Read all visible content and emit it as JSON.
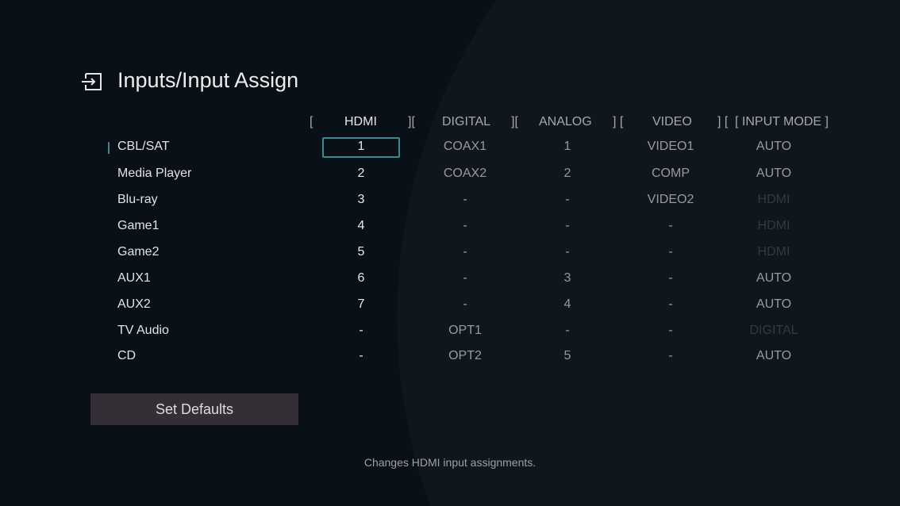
{
  "header": {
    "title": "Inputs/Input Assign",
    "icon": "input-icon"
  },
  "columns": {
    "hdmi": "HDMI",
    "digital": "DIGITAL",
    "analog": "ANALOG",
    "video": "VIDEO",
    "mode": "[ INPUT MODE ]"
  },
  "brackets": {
    "open": "[",
    "sep": "][",
    "sep2": "] [",
    "last": "] ["
  },
  "rows": [
    {
      "name": "CBL/SAT",
      "hdmi": "1",
      "digital": "COAX1",
      "analog": "1",
      "video": "VIDEO1",
      "mode": "AUTO",
      "mode_disabled": false
    },
    {
      "name": "Media Player",
      "hdmi": "2",
      "digital": "COAX2",
      "analog": "2",
      "video": "COMP",
      "mode": "AUTO",
      "mode_disabled": false
    },
    {
      "name": "Blu-ray",
      "hdmi": "3",
      "digital": "-",
      "analog": "-",
      "video": "VIDEO2",
      "mode": "HDMI",
      "mode_disabled": true
    },
    {
      "name": "Game1",
      "hdmi": "4",
      "digital": "-",
      "analog": "-",
      "video": "-",
      "mode": "HDMI",
      "mode_disabled": true
    },
    {
      "name": "Game2",
      "hdmi": "5",
      "digital": "-",
      "analog": "-",
      "video": "-",
      "mode": "HDMI",
      "mode_disabled": true
    },
    {
      "name": "AUX1",
      "hdmi": "6",
      "digital": "-",
      "analog": "3",
      "video": "-",
      "mode": "AUTO",
      "mode_disabled": false
    },
    {
      "name": "AUX2",
      "hdmi": "7",
      "digital": "-",
      "analog": "4",
      "video": "-",
      "mode": "AUTO",
      "mode_disabled": false
    },
    {
      "name": "TV Audio",
      "hdmi": "-",
      "digital": "OPT1",
      "analog": "-",
      "video": "-",
      "mode": "DIGITAL",
      "mode_disabled": true
    },
    {
      "name": "CD",
      "hdmi": "-",
      "digital": "OPT2",
      "analog": "5",
      "video": "-",
      "mode": "AUTO",
      "mode_disabled": false
    }
  ],
  "selected": {
    "row": "CBL/SAT",
    "column": "HDMI"
  },
  "set_defaults_label": "Set Defaults",
  "footer": "Changes HDMI input assignments.",
  "colors": {
    "accent": "#3f8590",
    "background": "#0a1017",
    "button": "#342f36"
  }
}
